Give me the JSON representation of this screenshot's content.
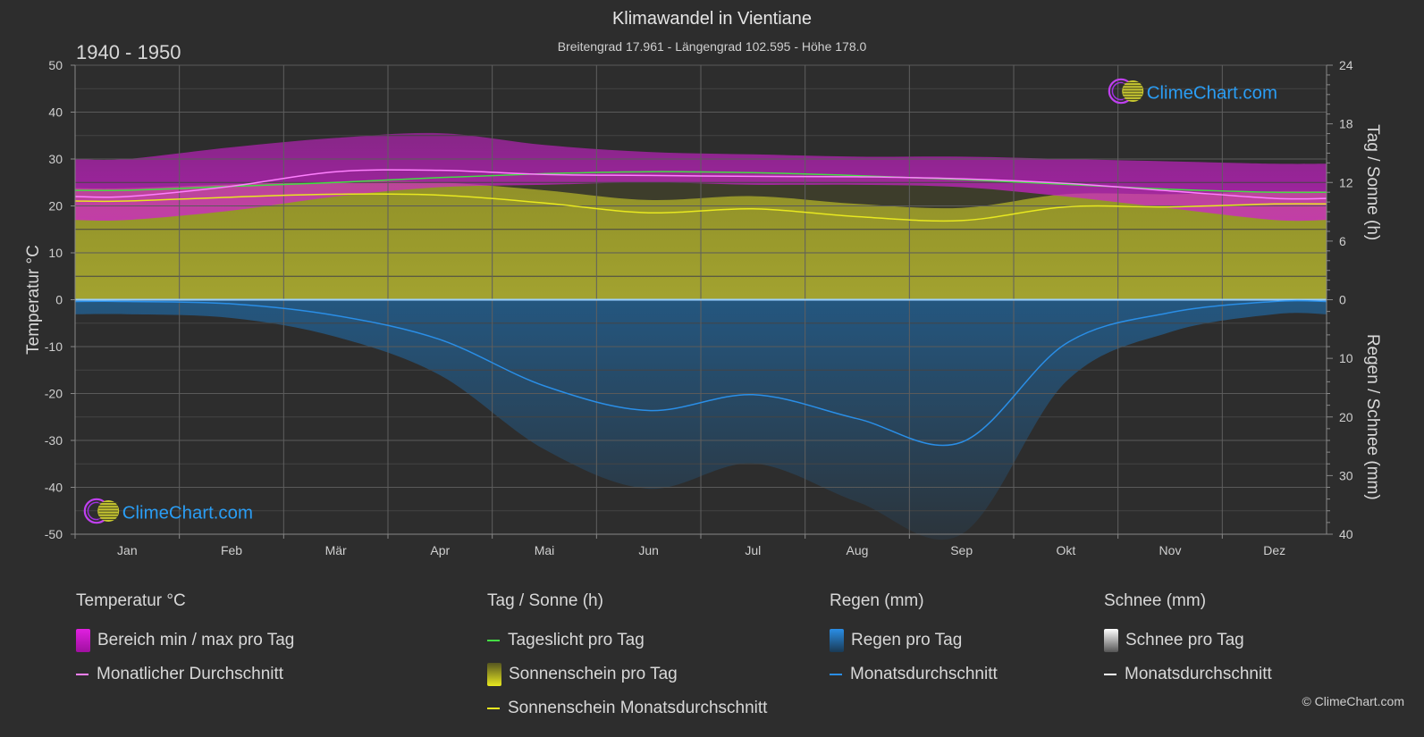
{
  "title": "Klimawandel in Vientiane",
  "subtitle": "Breitengrad 17.961 - Längengrad 102.595 - Höhe 178.0",
  "period": "1940 - 1950",
  "brand": "ClimeChart.com",
  "copyright": "© ClimeChart.com",
  "colors": {
    "background": "#2d2d2d",
    "temp_range": "#c81ec8",
    "temp_avg": "#ff80ff",
    "daylight": "#44dd44",
    "sunshine_fill": "#a8a830",
    "sunshine_avg": "#e8e820",
    "rain_fill": "#1f6fb0",
    "rain_avg": "#2a8ee6",
    "snow_avg": "#ffffff",
    "brand": "#2a9df4"
  },
  "chart_data": {
    "type": "area",
    "months": [
      "Jan",
      "Feb",
      "Mär",
      "Apr",
      "Mai",
      "Jun",
      "Jul",
      "Aug",
      "Sep",
      "Okt",
      "Nov",
      "Dez"
    ],
    "left_axis": {
      "label": "Temperatur °C",
      "range": [
        -50,
        50
      ],
      "ticks": [
        "50",
        "40",
        "30",
        "20",
        "10",
        "0",
        "-10",
        "-20",
        "-30",
        "-40",
        "-50"
      ]
    },
    "right_axis_top": {
      "label": "Tag / Sonne (h)",
      "range": [
        0,
        24
      ],
      "ticks": [
        "24",
        "18",
        "12",
        "6",
        "0"
      ]
    },
    "right_axis_bottom": {
      "label": "Regen / Schnee (mm)",
      "range": [
        0,
        40
      ],
      "ticks": [
        "0",
        "10",
        "20",
        "30",
        "40"
      ]
    },
    "grid": true,
    "series": [
      {
        "name": "Monatlicher Durchschnitt",
        "axis": "temperature",
        "values": [
          22,
          24.2,
          27.3,
          27.6,
          26.7,
          26.5,
          26.3,
          26.2,
          25.8,
          24.8,
          23.2,
          21.6
        ]
      },
      {
        "name": "Tageslicht pro Tag",
        "axis": "hours",
        "values": [
          11.2,
          11.6,
          12.0,
          12.5,
          12.9,
          13.1,
          13.0,
          12.7,
          12.3,
          11.8,
          11.3,
          11.0
        ]
      },
      {
        "name": "Sonnenschein Monatsdurchschnitt",
        "axis": "hours",
        "values": [
          10.1,
          10.5,
          10.8,
          10.7,
          9.9,
          8.9,
          9.3,
          8.5,
          8.1,
          9.5,
          9.5,
          9.8
        ]
      },
      {
        "name": "Regen Monatsdurchschnitt",
        "axis": "precip_mm",
        "values": [
          0.3,
          0.7,
          2.7,
          6.8,
          14.7,
          18.9,
          16.2,
          20.3,
          24.3,
          7.5,
          2.2,
          0.3
        ]
      },
      {
        "name": "Schnee Monatsdurchschnitt",
        "axis": "precip_mm",
        "values": [
          0,
          0,
          0,
          0,
          0,
          0,
          0,
          0,
          0,
          0,
          0,
          0
        ]
      }
    ],
    "temp_range_min": [
      17,
      19,
      22,
      24,
      24.5,
      25,
      24.5,
      24.5,
      24,
      22,
      19.5,
      17
    ],
    "temp_range_max": [
      30,
      32.5,
      34.5,
      35.5,
      33,
      31.5,
      31,
      30.5,
      30.5,
      30,
      29.5,
      29
    ]
  },
  "legend": {
    "temp": {
      "head": "Temperatur °C",
      "range": "Bereich min / max pro Tag",
      "avg": "Monatlicher Durchschnitt"
    },
    "sun": {
      "head": "Tag / Sonne (h)",
      "daylight": "Tageslicht pro Tag",
      "sunshine": "Sonnenschein pro Tag",
      "sunshine_avg": "Sonnenschein Monatsdurchschnitt"
    },
    "rain": {
      "head": "Regen (mm)",
      "per_day": "Regen pro Tag",
      "avg": "Monatsdurchschnitt"
    },
    "snow": {
      "head": "Schnee (mm)",
      "per_day": "Schnee pro Tag",
      "avg": "Monatsdurchschnitt"
    }
  }
}
